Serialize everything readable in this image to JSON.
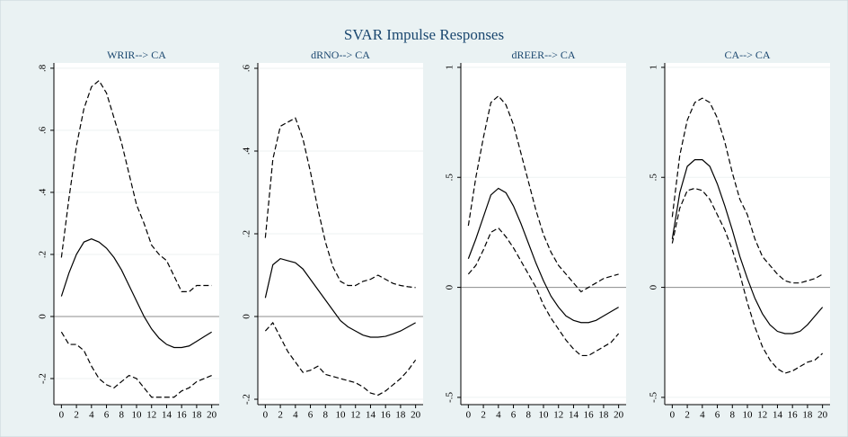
{
  "title": "SVAR Impulse Responses",
  "chart_data": [
    {
      "type": "line",
      "title": "WRIR--> CA",
      "x": [
        0,
        1,
        2,
        3,
        4,
        5,
        6,
        7,
        8,
        9,
        10,
        11,
        12,
        13,
        14,
        15,
        16,
        17,
        18,
        19,
        20
      ],
      "xlim": [
        -1,
        21
      ],
      "xticks": [
        0,
        2,
        4,
        6,
        8,
        10,
        12,
        14,
        16,
        18,
        20
      ],
      "ylim": [
        -0.284,
        0.817
      ],
      "yticks": [
        {
          "value": -0.2,
          "label": "-.2"
        },
        0,
        {
          "value": 0.2,
          "label": ".2"
        },
        {
          "value": 0.4,
          "label": ".4"
        },
        {
          "value": 0.6,
          "label": ".6"
        },
        {
          "value": 0.8,
          "label": ".8"
        }
      ],
      "grid": true,
      "hline": 0,
      "series": [
        {
          "color": "#000000",
          "dash": false,
          "values": [
            0.065,
            0.14,
            0.2,
            0.24,
            0.25,
            0.24,
            0.22,
            0.19,
            0.15,
            0.1,
            0.05,
            0.0,
            -0.04,
            -0.07,
            -0.09,
            -0.1,
            -0.1,
            -0.095,
            -0.08,
            -0.065,
            -0.05
          ]
        },
        {
          "color": "#000000",
          "dash": true,
          "values": [
            0.19,
            0.38,
            0.55,
            0.67,
            0.74,
            0.76,
            0.72,
            0.64,
            0.56,
            0.46,
            0.36,
            0.3,
            0.23,
            0.2,
            0.18,
            0.13,
            0.08,
            0.08,
            0.1,
            0.1,
            0.1
          ]
        },
        {
          "color": "#000000",
          "dash": true,
          "values": [
            -0.05,
            -0.09,
            -0.09,
            -0.11,
            -0.16,
            -0.2,
            -0.22,
            -0.23,
            -0.21,
            -0.19,
            -0.2,
            -0.23,
            -0.26,
            -0.26,
            -0.26,
            -0.26,
            -0.24,
            -0.23,
            -0.21,
            -0.2,
            -0.19
          ]
        }
      ]
    },
    {
      "type": "line",
      "title": "dRNO--> CA",
      "x": [
        0,
        1,
        2,
        3,
        4,
        5,
        6,
        7,
        8,
        9,
        10,
        11,
        12,
        13,
        14,
        15,
        16,
        17,
        18,
        19,
        20
      ],
      "xlim": [
        -1,
        21
      ],
      "xticks": [
        0,
        2,
        4,
        6,
        8,
        10,
        12,
        14,
        16,
        18,
        20
      ],
      "ylim": [
        -0.213,
        0.613
      ],
      "yticks": [
        {
          "value": -0.2,
          "label": "-.2"
        },
        0,
        {
          "value": 0.2,
          "label": ".2"
        },
        {
          "value": 0.4,
          "label": ".4"
        },
        {
          "value": 0.6,
          "label": ".6"
        }
      ],
      "grid": true,
      "hline": 0,
      "series": [
        {
          "color": "#000000",
          "dash": false,
          "values": [
            0.045,
            0.125,
            0.14,
            0.135,
            0.13,
            0.115,
            0.09,
            0.065,
            0.04,
            0.015,
            -0.01,
            -0.025,
            -0.035,
            -0.045,
            -0.05,
            -0.05,
            -0.048,
            -0.042,
            -0.035,
            -0.025,
            -0.015
          ]
        },
        {
          "color": "#000000",
          "dash": true,
          "values": [
            0.19,
            0.38,
            0.46,
            0.47,
            0.48,
            0.43,
            0.35,
            0.26,
            0.18,
            0.12,
            0.085,
            0.075,
            0.075,
            0.085,
            0.09,
            0.1,
            0.09,
            0.08,
            0.075,
            0.072,
            0.07
          ]
        },
        {
          "color": "#000000",
          "dash": true,
          "values": [
            -0.035,
            -0.015,
            -0.05,
            -0.085,
            -0.11,
            -0.135,
            -0.13,
            -0.12,
            -0.14,
            -0.145,
            -0.15,
            -0.155,
            -0.16,
            -0.17,
            -0.185,
            -0.19,
            -0.18,
            -0.165,
            -0.15,
            -0.13,
            -0.105
          ]
        }
      ]
    },
    {
      "type": "line",
      "title": "dREER--> CA",
      "x": [
        0,
        1,
        2,
        3,
        4,
        5,
        6,
        7,
        8,
        9,
        10,
        11,
        12,
        13,
        14,
        15,
        16,
        17,
        18,
        19,
        20
      ],
      "xlim": [
        -1,
        21
      ],
      "xticks": [
        0,
        2,
        4,
        6,
        8,
        10,
        12,
        14,
        16,
        18,
        20
      ],
      "ylim": [
        -0.533,
        1.02
      ],
      "yticks": [
        {
          "value": -0.5,
          "label": "-.5"
        },
        0,
        {
          "value": 0.5,
          "label": ".5"
        },
        1
      ],
      "grid": true,
      "hline": 0,
      "series": [
        {
          "color": "#000000",
          "dash": false,
          "values": [
            0.13,
            0.22,
            0.32,
            0.42,
            0.45,
            0.43,
            0.37,
            0.29,
            0.2,
            0.11,
            0.03,
            -0.04,
            -0.09,
            -0.13,
            -0.15,
            -0.16,
            -0.16,
            -0.15,
            -0.13,
            -0.11,
            -0.09
          ]
        },
        {
          "color": "#000000",
          "dash": true,
          "values": [
            0.28,
            0.5,
            0.68,
            0.84,
            0.87,
            0.83,
            0.74,
            0.61,
            0.48,
            0.35,
            0.24,
            0.16,
            0.1,
            0.06,
            0.02,
            -0.02,
            0.0,
            0.02,
            0.04,
            0.05,
            0.06
          ]
        },
        {
          "color": "#000000",
          "dash": true,
          "values": [
            0.06,
            0.1,
            0.17,
            0.25,
            0.27,
            0.23,
            0.18,
            0.12,
            0.06,
            0.0,
            -0.08,
            -0.14,
            -0.19,
            -0.24,
            -0.28,
            -0.31,
            -0.31,
            -0.29,
            -0.27,
            -0.25,
            -0.21
          ]
        }
      ]
    },
    {
      "type": "line",
      "title": "CA--> CA",
      "x": [
        0,
        1,
        2,
        3,
        4,
        5,
        6,
        7,
        8,
        9,
        10,
        11,
        12,
        13,
        14,
        15,
        16,
        17,
        18,
        19,
        20
      ],
      "xlim": [
        -1,
        21
      ],
      "xticks": [
        0,
        2,
        4,
        6,
        8,
        10,
        12,
        14,
        16,
        18,
        20
      ],
      "ylim": [
        -0.533,
        1.02
      ],
      "yticks": [
        {
          "value": -0.5,
          "label": "-.5"
        },
        0,
        {
          "value": 0.5,
          "label": ".5"
        },
        1
      ],
      "grid": true,
      "hline": 0,
      "series": [
        {
          "color": "#000000",
          "dash": false,
          "values": [
            0.22,
            0.43,
            0.55,
            0.58,
            0.58,
            0.55,
            0.47,
            0.37,
            0.26,
            0.14,
            0.04,
            -0.05,
            -0.12,
            -0.17,
            -0.2,
            -0.21,
            -0.21,
            -0.2,
            -0.17,
            -0.13,
            -0.09
          ]
        },
        {
          "color": "#000000",
          "dash": true,
          "values": [
            0.32,
            0.6,
            0.76,
            0.84,
            0.86,
            0.84,
            0.77,
            0.66,
            0.52,
            0.4,
            0.33,
            0.22,
            0.14,
            0.1,
            0.06,
            0.03,
            0.02,
            0.02,
            0.03,
            0.04,
            0.06
          ]
        },
        {
          "color": "#000000",
          "dash": true,
          "values": [
            0.2,
            0.36,
            0.44,
            0.45,
            0.44,
            0.4,
            0.33,
            0.26,
            0.17,
            0.06,
            -0.07,
            -0.18,
            -0.27,
            -0.33,
            -0.37,
            -0.39,
            -0.38,
            -0.36,
            -0.34,
            -0.33,
            -0.3
          ]
        }
      ]
    }
  ]
}
